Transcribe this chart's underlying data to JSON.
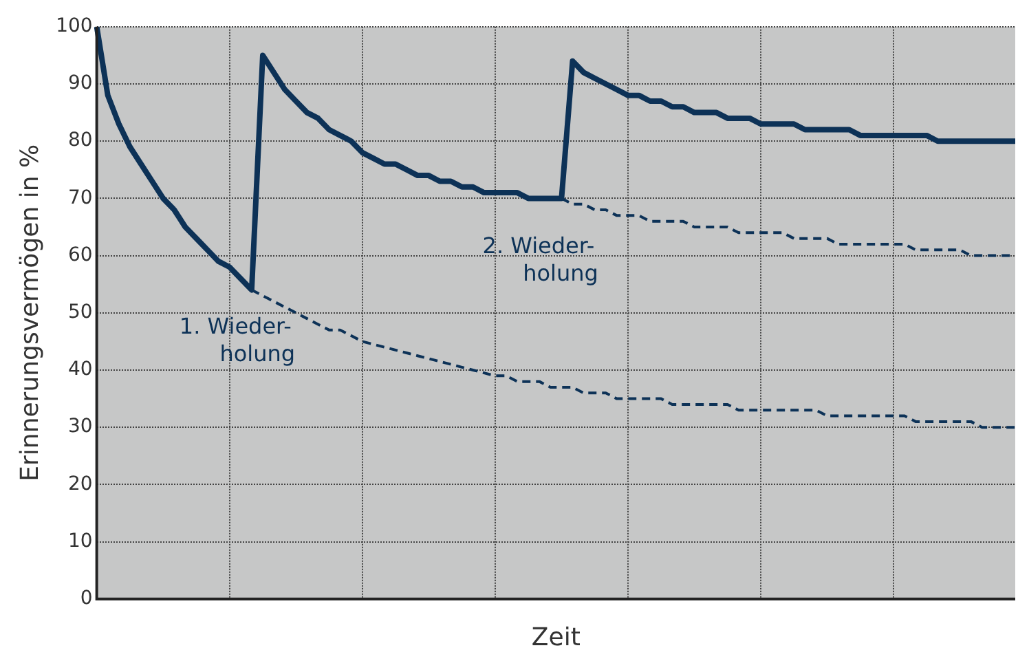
{
  "chart_data": {
    "type": "line",
    "xlabel": "Zeit",
    "ylabel": "Erinnerungsvermögen in %",
    "categories": [
      null,
      null,
      null,
      null,
      null,
      null,
      null,
      null,
      null,
      null,
      null,
      null,
      null,
      null,
      null,
      null,
      null,
      null,
      null,
      null,
      null,
      null,
      null,
      null,
      null,
      null,
      null,
      null,
      null,
      null,
      null,
      null,
      null,
      null,
      null,
      null,
      null,
      null,
      null,
      null,
      null,
      null,
      null,
      null,
      null,
      null,
      null,
      null,
      null,
      null,
      null,
      null,
      null,
      null,
      null,
      null,
      null,
      null,
      null,
      null,
      null,
      null,
      null,
      null,
      null,
      null,
      null,
      null,
      null,
      null,
      null,
      null,
      null,
      null,
      null,
      null,
      null,
      null,
      null,
      null,
      null,
      null,
      null,
      null
    ],
    "ylim": [
      0,
      100
    ],
    "yticks": [
      0,
      10,
      20,
      30,
      40,
      50,
      60,
      70,
      80,
      90,
      100
    ],
    "tick_labels": "y",
    "grid": true,
    "legend": false,
    "marker": "none",
    "series": [
      {
        "color": "#0d3257",
        "line_style": "solid",
        "values": [
          100,
          88,
          83,
          79,
          76,
          73,
          70,
          68,
          65,
          63,
          61,
          59,
          58,
          56,
          54,
          95,
          92,
          89,
          87,
          85,
          84,
          82,
          81,
          80,
          78,
          77,
          76,
          76,
          75,
          74,
          74,
          73,
          73,
          72,
          72,
          71,
          71,
          71,
          71,
          70,
          70,
          70,
          70,
          94,
          92,
          91,
          90,
          89,
          88,
          88,
          87,
          87,
          86,
          86,
          85,
          85,
          85,
          84,
          84,
          84,
          83,
          83,
          83,
          83,
          82,
          82,
          82,
          82,
          82,
          81,
          81,
          81,
          81,
          81,
          81,
          81,
          80,
          80,
          80,
          80,
          80,
          80,
          80,
          80
        ]
      },
      {
        "color": "#0d3257",
        "line_style": "dashed",
        "values": [
          null,
          null,
          null,
          null,
          null,
          null,
          null,
          null,
          null,
          null,
          null,
          null,
          null,
          null,
          54,
          53,
          52,
          51,
          50,
          49,
          48,
          47,
          47,
          46,
          45,
          44.5,
          44,
          43.5,
          43,
          42.5,
          42,
          41.5,
          41,
          40.5,
          40,
          39.5,
          39,
          39,
          38,
          38,
          38,
          37,
          37,
          37,
          36,
          36,
          36,
          35,
          35,
          35,
          35,
          35,
          34,
          34,
          34,
          34,
          34,
          34,
          33,
          33,
          33,
          33,
          33,
          33,
          33,
          33,
          32,
          32,
          32,
          32,
          32,
          32,
          32,
          32,
          31,
          31,
          31,
          31,
          31,
          31,
          30,
          30,
          30,
          30
        ]
      },
      {
        "color": "#0d3257",
        "line_style": "dashed",
        "values": [
          null,
          null,
          null,
          null,
          null,
          null,
          null,
          null,
          null,
          null,
          null,
          null,
          null,
          null,
          null,
          null,
          null,
          null,
          null,
          null,
          null,
          null,
          null,
          null,
          null,
          null,
          null,
          null,
          null,
          null,
          null,
          null,
          null,
          null,
          null,
          null,
          null,
          null,
          null,
          null,
          null,
          null,
          70,
          69,
          69,
          68,
          68,
          67,
          67,
          67,
          66,
          66,
          66,
          66,
          65,
          65,
          65,
          65,
          64,
          64,
          64,
          64,
          64,
          63,
          63,
          63,
          63,
          62,
          62,
          62,
          62,
          62,
          62,
          62,
          61,
          61,
          61,
          61,
          61,
          60,
          60,
          60,
          60,
          60
        ]
      }
    ],
    "annotations": [
      "1. Wieder-\nholung",
      "2. Wieder-\nholung"
    ]
  }
}
